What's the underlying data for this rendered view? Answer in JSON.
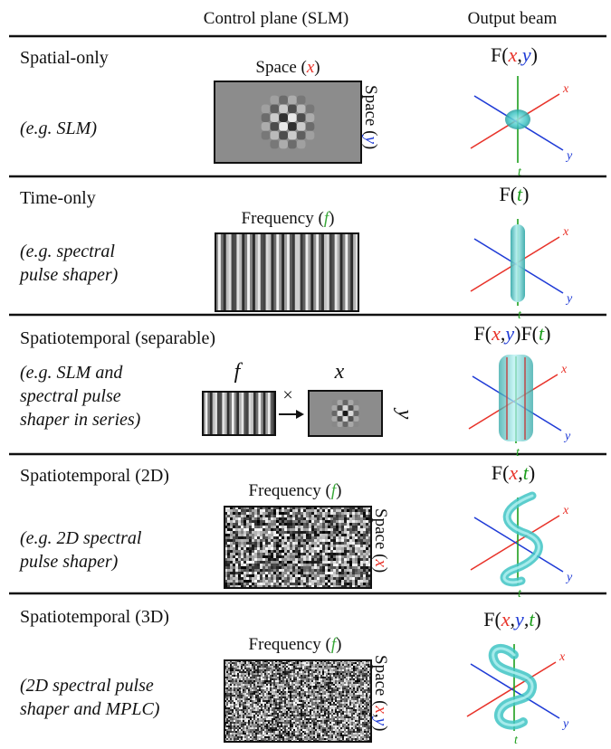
{
  "header": {
    "control_plane": "Control plane (SLM)",
    "output_beam": "Output beam"
  },
  "colors": {
    "x": "#e8332a",
    "y": "#1f3bd6",
    "t": "#1d9e1d",
    "f": "#3aa83a",
    "beam": "#3fc4c4",
    "text": "#111111"
  },
  "rows": [
    {
      "title": "Spatial-only",
      "example": "(e.g. SLM)",
      "control_top_label": {
        "word": "Space",
        "var": "x"
      },
      "control_side_label": {
        "word": "Space",
        "var": "y"
      },
      "output_formula": [
        [
          "F(",
          ""
        ],
        [
          "x",
          "x"
        ],
        [
          ",",
          ""
        ],
        [
          "y",
          "y"
        ],
        [
          ")",
          ""
        ]
      ],
      "axes": {
        "x": "x",
        "y": "y",
        "t": "t"
      }
    },
    {
      "title": "Time-only",
      "example_lines": [
        "(e.g. spectral",
        "pulse shaper)"
      ],
      "control_top_label": {
        "word": "Frequency",
        "var": "f"
      },
      "output_formula": [
        [
          "F(",
          ""
        ],
        [
          "t",
          "t"
        ],
        [
          ")",
          ""
        ]
      ],
      "axes": {
        "x": "x",
        "y": "y",
        "t": "t"
      }
    },
    {
      "title": "Spatiotemporal (separable)",
      "example_lines": [
        "(e.g. SLM and",
        "spectral pulse",
        "shaper in series)"
      ],
      "control_vars": {
        "f": "f",
        "x": "x",
        "y": "y"
      },
      "times_symbol": "×",
      "output_formula": [
        [
          "F(",
          ""
        ],
        [
          "x",
          "x"
        ],
        [
          ",",
          ""
        ],
        [
          "y",
          "y"
        ],
        [
          ")F(",
          ""
        ],
        [
          "t",
          "t"
        ],
        [
          ")",
          ""
        ]
      ],
      "axes": {
        "x": "x",
        "y": "y",
        "t": "t"
      }
    },
    {
      "title": "Spatiotemporal (2D)",
      "example_lines": [
        "(e.g. 2D spectral",
        "pulse shaper)"
      ],
      "control_top_label": {
        "word": "Frequency",
        "var": "f"
      },
      "control_side_label": {
        "word": "Space",
        "var": "x"
      },
      "output_formula": [
        [
          "F(",
          ""
        ],
        [
          "x",
          "x"
        ],
        [
          ",",
          ""
        ],
        [
          "t",
          "t"
        ],
        [
          ")",
          ""
        ]
      ],
      "axes": {
        "x": "x",
        "y": "y",
        "t": "t"
      }
    },
    {
      "title": "Spatiotemporal (3D)",
      "example_lines": [
        "(2D spectral pulse",
        "shaper and MPLC)"
      ],
      "control_top_label": {
        "word": "Frequency",
        "var": "f"
      },
      "control_side_label": {
        "word": "Space",
        "vars": [
          "x",
          "y"
        ]
      },
      "output_formula": [
        [
          "F(",
          ""
        ],
        [
          "x",
          "x"
        ],
        [
          ",",
          ""
        ],
        [
          "y",
          "y"
        ],
        [
          ",",
          ""
        ],
        [
          "t",
          "t"
        ],
        [
          ")",
          ""
        ]
      ],
      "axes": {
        "x": "x",
        "y": "y",
        "t": "t"
      }
    }
  ]
}
